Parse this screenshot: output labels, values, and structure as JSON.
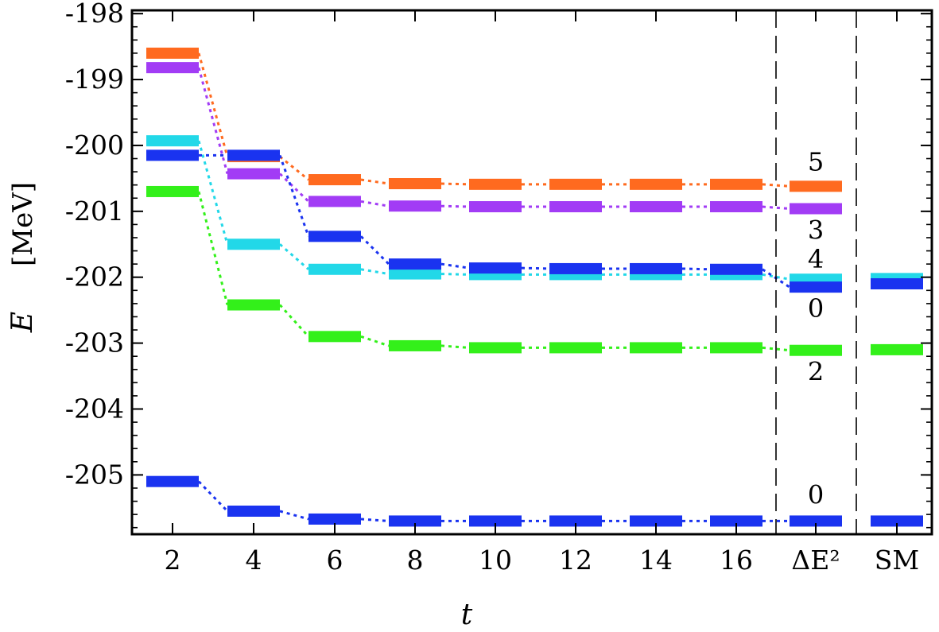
{
  "chart_data": {
    "type": "line",
    "xlabel": "t",
    "ylabel": "E",
    "ylabel_unit": "[MeV]",
    "ylim": [
      -205.9,
      -197.95
    ],
    "yticks": [
      "-198",
      "-199",
      "-200",
      "-201",
      "-202",
      "-203",
      "-204",
      "-205"
    ],
    "ytick_values": [
      -198,
      -199,
      -200,
      -201,
      -202,
      -203,
      -204,
      -205
    ],
    "x": [
      2,
      4,
      6,
      8,
      10,
      12,
      14,
      16
    ],
    "xticks": [
      "2",
      "4",
      "6",
      "8",
      "10",
      "12",
      "14",
      "16"
    ],
    "extra_columns": [
      "ΔE²",
      "SM"
    ],
    "grid": false,
    "series": [
      {
        "color": "#ff6a1f",
        "values": [
          -198.6,
          -200.17,
          -200.52,
          -200.58,
          -200.59,
          -200.59,
          -200.59,
          -200.59
        ],
        "extrapolated": -200.62,
        "shell_model": null,
        "spin_label": "5"
      },
      {
        "color": "#a23cf5",
        "values": [
          -198.82,
          -200.43,
          -200.85,
          -200.92,
          -200.93,
          -200.93,
          -200.93,
          -200.93
        ],
        "extrapolated": -200.96,
        "shell_model": null,
        "spin_label": "3"
      },
      {
        "color": "#1a33f0",
        "values": [
          -205.1,
          -205.55,
          -205.67,
          -205.7,
          -205.7,
          -205.7,
          -205.7,
          -205.7
        ],
        "extrapolated": -205.7,
        "shell_model": -205.7,
        "spin_label": "0"
      },
      {
        "color": "#22d8e8",
        "values": [
          -199.93,
          -201.5,
          -201.88,
          -201.95,
          -201.96,
          -201.96,
          -201.96,
          -201.96
        ],
        "extrapolated": -202.03,
        "shell_model": -202.02,
        "spin_label": "4"
      },
      {
        "color": "#1a33f0",
        "values": [
          -200.15,
          -200.15,
          -201.38,
          -201.8,
          -201.86,
          -201.87,
          -201.87,
          -201.88
        ],
        "extrapolated": -202.15,
        "shell_model": -202.1,
        "spin_label": "0"
      },
      {
        "color": "#33f01a",
        "values": [
          -200.7,
          -202.42,
          -202.9,
          -203.04,
          -203.07,
          -203.07,
          -203.07,
          -203.07
        ],
        "extrapolated": -203.11,
        "shell_model": -203.1,
        "spin_label": "2"
      }
    ]
  }
}
